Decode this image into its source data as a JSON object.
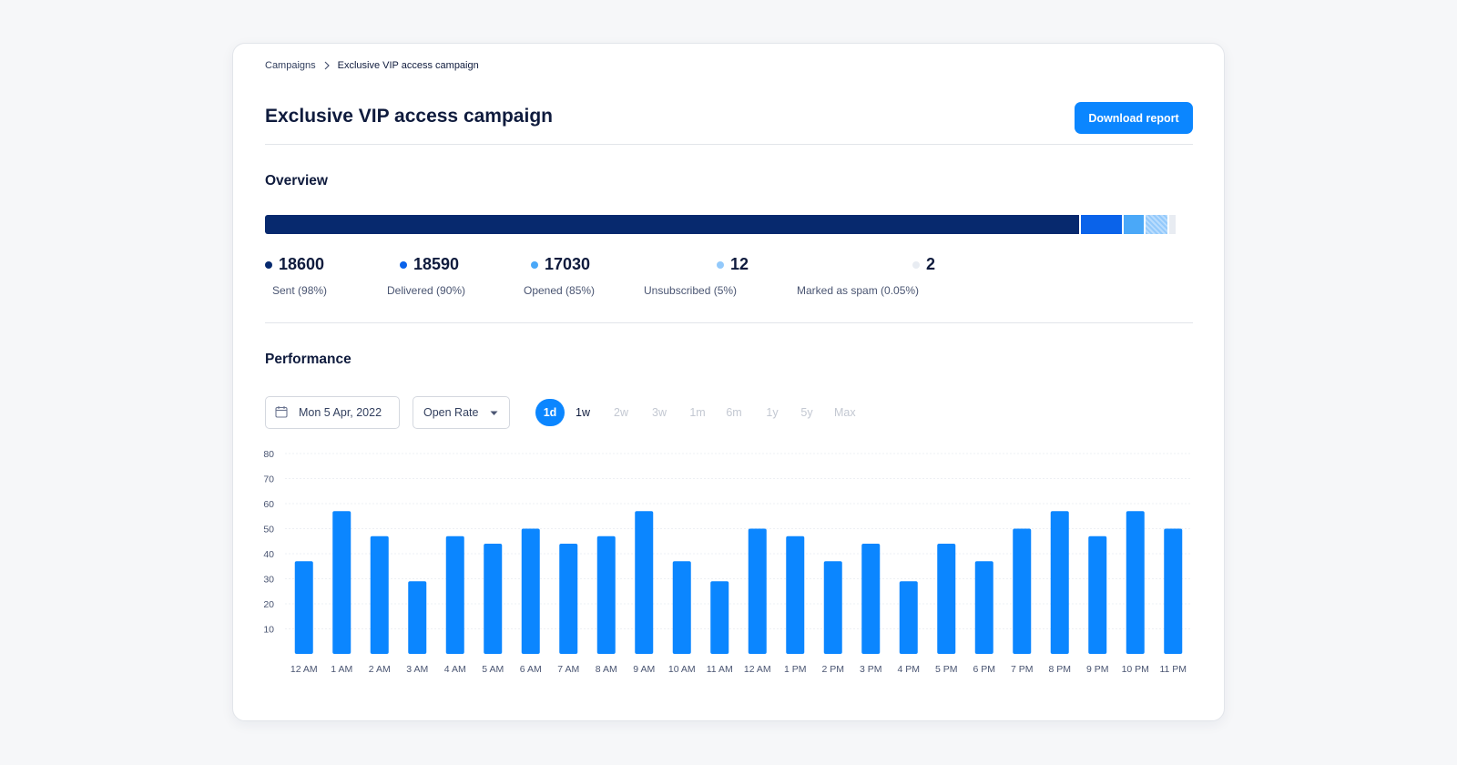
{
  "breadcrumb": {
    "items": [
      "Campaigns",
      "Exclusive VIP access campaign"
    ]
  },
  "page": {
    "title": "Exclusive VIP access campaign",
    "download_label": "Download report"
  },
  "overview": {
    "title": "Overview",
    "stats": [
      {
        "value": "18600",
        "label": "Sent (98%)",
        "color": "#07296e"
      },
      {
        "value": "18590",
        "label": "Delivered (90%)",
        "color": "#0a63ea"
      },
      {
        "value": "17030",
        "label": "Opened (85%)",
        "color": "#4aa8f8"
      },
      {
        "value": "12",
        "label": "Unsubscribed (5%)",
        "color": "#93c9fb"
      },
      {
        "value": "2",
        "label": "Marked as spam (0.05%)",
        "color": "#e8ecf2"
      }
    ]
  },
  "performance": {
    "title": "Performance",
    "date_value": "Mon 5 Apr, 2022",
    "metric_value": "Open Rate",
    "ranges": [
      "1d",
      "1w",
      "2w",
      "3w",
      "1m",
      "6m",
      "1y",
      "5y",
      "Max"
    ],
    "active_range": "1d"
  },
  "chart_data": {
    "type": "bar",
    "categories": [
      "12 AM",
      "1 AM",
      "2 AM",
      "3 AM",
      "4 AM",
      "5 AM",
      "6 AM",
      "7 AM",
      "8 AM",
      "9 AM",
      "10 AM",
      "11 AM",
      "12 AM",
      "1 PM",
      "2 PM",
      "3 PM",
      "4 PM",
      "5 PM",
      "6 PM",
      "7 PM",
      "8 PM",
      "9 PM",
      "10 PM",
      "11 PM"
    ],
    "values": [
      37,
      57,
      47,
      29,
      47,
      44,
      50,
      44,
      47,
      57,
      37,
      29,
      50,
      47,
      37,
      44,
      29,
      44,
      37,
      50,
      57,
      47,
      57,
      50
    ],
    "yticks": [
      10,
      20,
      30,
      40,
      50,
      60,
      70,
      80
    ],
    "ylim": [
      0,
      80
    ],
    "grid": true,
    "bar_color": "#0b86ff"
  }
}
